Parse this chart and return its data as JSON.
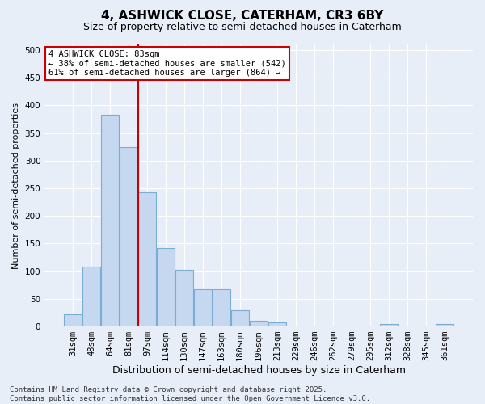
{
  "title": "4, ASHWICK CLOSE, CATERHAM, CR3 6BY",
  "subtitle": "Size of property relative to semi-detached houses in Caterham",
  "xlabel": "Distribution of semi-detached houses by size in Caterham",
  "ylabel": "Number of semi-detached properties",
  "categories": [
    "31sqm",
    "48sqm",
    "64sqm",
    "81sqm",
    "97sqm",
    "114sqm",
    "130sqm",
    "147sqm",
    "163sqm",
    "180sqm",
    "196sqm",
    "213sqm",
    "229sqm",
    "246sqm",
    "262sqm",
    "279sqm",
    "295sqm",
    "312sqm",
    "328sqm",
    "345sqm",
    "361sqm"
  ],
  "values": [
    22,
    108,
    383,
    325,
    242,
    142,
    102,
    68,
    68,
    30,
    10,
    8,
    0,
    0,
    0,
    0,
    0,
    5,
    0,
    0,
    5
  ],
  "bar_color": "#c5d8f0",
  "bar_edge_color": "#7aadd4",
  "bg_color": "#e8eef8",
  "grid_color": "#d0d8e8",
  "vline_color": "#cc0000",
  "vline_x": 3.5,
  "annotation_title": "4 ASHWICK CLOSE: 83sqm",
  "annotation_line1": "← 38% of semi-detached houses are smaller (542)",
  "annotation_line2": "61% of semi-detached houses are larger (864) →",
  "annotation_box_color": "#cc0000",
  "footer1": "Contains HM Land Registry data © Crown copyright and database right 2025.",
  "footer2": "Contains public sector information licensed under the Open Government Licence v3.0.",
  "ylim": [
    0,
    510
  ],
  "yticks": [
    0,
    50,
    100,
    150,
    200,
    250,
    300,
    350,
    400,
    450,
    500
  ],
  "title_fontsize": 11,
  "subtitle_fontsize": 9,
  "ylabel_fontsize": 8,
  "xlabel_fontsize": 9,
  "tick_fontsize": 7.5,
  "footer_fontsize": 6.5
}
